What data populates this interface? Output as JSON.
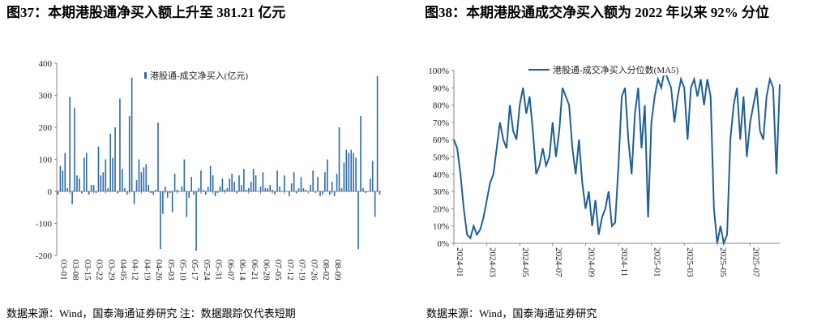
{
  "chart_data": [
    {
      "type": "bar",
      "title": "图37：本期港股通净买入额上升至 381.21 亿元",
      "categories": [
        "03-01",
        null,
        null,
        null,
        null,
        "03-08",
        null,
        null,
        null,
        null,
        "03-15",
        null,
        null,
        null,
        null,
        "03-22",
        null,
        null,
        null,
        null,
        "03-29",
        null,
        null,
        null,
        null,
        "04-05",
        null,
        null,
        null,
        null,
        "04-12",
        null,
        null,
        null,
        null,
        "04-19",
        null,
        null,
        null,
        null,
        "04-26",
        null,
        null,
        null,
        null,
        "05-03",
        null,
        null,
        null,
        null,
        "05-10",
        null,
        null,
        null,
        null,
        "05-17",
        null,
        null,
        null,
        null,
        "05-24",
        null,
        null,
        null,
        null,
        "05-31",
        null,
        null,
        null,
        null,
        "06-07",
        null,
        null,
        null,
        null,
        "06-14",
        null,
        null,
        null,
        null,
        "06-21",
        null,
        null,
        null,
        null,
        "06-28",
        null,
        null,
        null,
        null,
        "07-05",
        null,
        null,
        null,
        null,
        "07-12",
        null,
        null,
        null,
        null,
        "07-19",
        null,
        null,
        null,
        null,
        "07-26",
        null,
        null,
        null,
        null,
        "08-02",
        null,
        null,
        null,
        null,
        "08-09",
        null,
        null,
        null,
        null,
        null,
        null,
        null,
        null,
        null,
        null,
        null,
        null,
        null,
        null,
        null,
        null,
        null,
        null,
        null,
        null
      ],
      "series": [
        {
          "name": "港股通-成交净买入(亿元)",
          "color": "#2e6aa6",
          "values": [
            -10,
            80,
            65,
            120,
            10,
            295,
            -40,
            260,
            50,
            40,
            -5,
            105,
            120,
            -10,
            20,
            20,
            -5,
            140,
            50,
            60,
            100,
            10,
            180,
            105,
            200,
            -5,
            290,
            70,
            10,
            -10,
            235,
            355,
            -40,
            35,
            100,
            60,
            75,
            85,
            20,
            -5,
            -10,
            5,
            215,
            -180,
            -70,
            15,
            -20,
            -5,
            -65,
            55,
            5,
            0,
            15,
            100,
            -80,
            -20,
            45,
            -10,
            -185,
            10,
            65,
            5,
            -10,
            15,
            80,
            50,
            -15,
            -5,
            15,
            40,
            5,
            10,
            40,
            55,
            30,
            -5,
            50,
            20,
            70,
            5,
            10,
            30,
            70,
            50,
            0,
            15,
            60,
            10,
            10,
            20,
            5,
            -10,
            65,
            15,
            0,
            50,
            0,
            -15,
            25,
            60,
            -5,
            10,
            45,
            10,
            5,
            0,
            20,
            65,
            -5,
            45,
            -15,
            -10,
            60,
            100,
            -10,
            30,
            -15,
            55,
            200,
            10,
            90,
            130,
            120,
            130,
            120,
            105,
            -180,
            235,
            10,
            -5,
            0,
            40,
            95,
            -80,
            360,
            -10
          ]
        }
      ],
      "ylim": [
        -200,
        400
      ],
      "yticks": [
        -200,
        -100,
        0,
        100,
        200,
        300,
        400
      ],
      "legend": "upper center"
    },
    {
      "type": "line",
      "title": "图38：本期港股通成交净买入额为 2022 年以来 92% 分位",
      "categories": [
        "2024-01",
        null,
        null,
        null,
        null,
        null,
        null,
        null,
        null,
        null,
        "2024-03",
        null,
        null,
        null,
        null,
        null,
        null,
        null,
        null,
        null,
        "2024-05",
        null,
        null,
        null,
        null,
        null,
        null,
        null,
        null,
        null,
        "2024-07",
        null,
        null,
        null,
        null,
        null,
        null,
        null,
        null,
        null,
        "2024-09",
        null,
        null,
        null,
        null,
        null,
        null,
        null,
        null,
        null,
        "2024-11",
        null,
        null,
        null,
        null,
        null,
        null,
        null,
        null,
        null,
        "2025-01",
        null,
        null,
        null,
        null,
        null,
        null,
        null,
        null,
        null,
        "2025-03",
        null,
        null,
        null,
        null,
        null,
        null,
        null,
        null,
        null,
        "2025-05",
        null,
        null,
        null,
        null,
        null,
        null,
        null,
        null,
        null,
        "2025-07",
        null,
        null,
        null,
        null,
        null,
        null,
        null,
        null,
        null
      ],
      "series": [
        {
          "name": "港股通-成交净买入分位数(MA5)",
          "color": "#1f5f99",
          "values": [
            60,
            55,
            40,
            20,
            5,
            3,
            10,
            5,
            8,
            15,
            25,
            35,
            40,
            55,
            70,
            60,
            55,
            80,
            65,
            60,
            80,
            90,
            75,
            85,
            65,
            40,
            45,
            55,
            45,
            50,
            70,
            50,
            65,
            90,
            85,
            80,
            55,
            40,
            60,
            35,
            20,
            30,
            10,
            25,
            5,
            15,
            20,
            30,
            10,
            12,
            45,
            85,
            90,
            60,
            40,
            75,
            90,
            55,
            80,
            15,
            70,
            85,
            95,
            90,
            100,
            95,
            90,
            70,
            85,
            95,
            90,
            60,
            90,
            95,
            85,
            95,
            80,
            95,
            85,
            20,
            0,
            10,
            0,
            5,
            60,
            80,
            90,
            60,
            85,
            50,
            70,
            80,
            90,
            65,
            60,
            85,
            95,
            90,
            40,
            92
          ]
        }
      ],
      "ylim": [
        0,
        100
      ],
      "yticks": [
        {
          "value": 0,
          "label": "0%"
        },
        {
          "value": 10,
          "label": "10%"
        },
        {
          "value": 20,
          "label": "20%"
        },
        {
          "value": 30,
          "label": "30%"
        },
        {
          "value": 40,
          "label": "40%"
        },
        {
          "value": 50,
          "label": "50%"
        },
        {
          "value": 60,
          "label": "60%"
        },
        {
          "value": 70,
          "label": "70%"
        },
        {
          "value": 80,
          "label": "80%"
        },
        {
          "value": 90,
          "label": "90%"
        },
        {
          "value": 100,
          "label": "100%"
        }
      ],
      "legend": "upper center"
    }
  ],
  "notes": [
    "数据来源：Wind，国泰海通证券研究 注：数据跟踪仅代表短期",
    "数据来源：Wind，国泰海通证券研究"
  ]
}
